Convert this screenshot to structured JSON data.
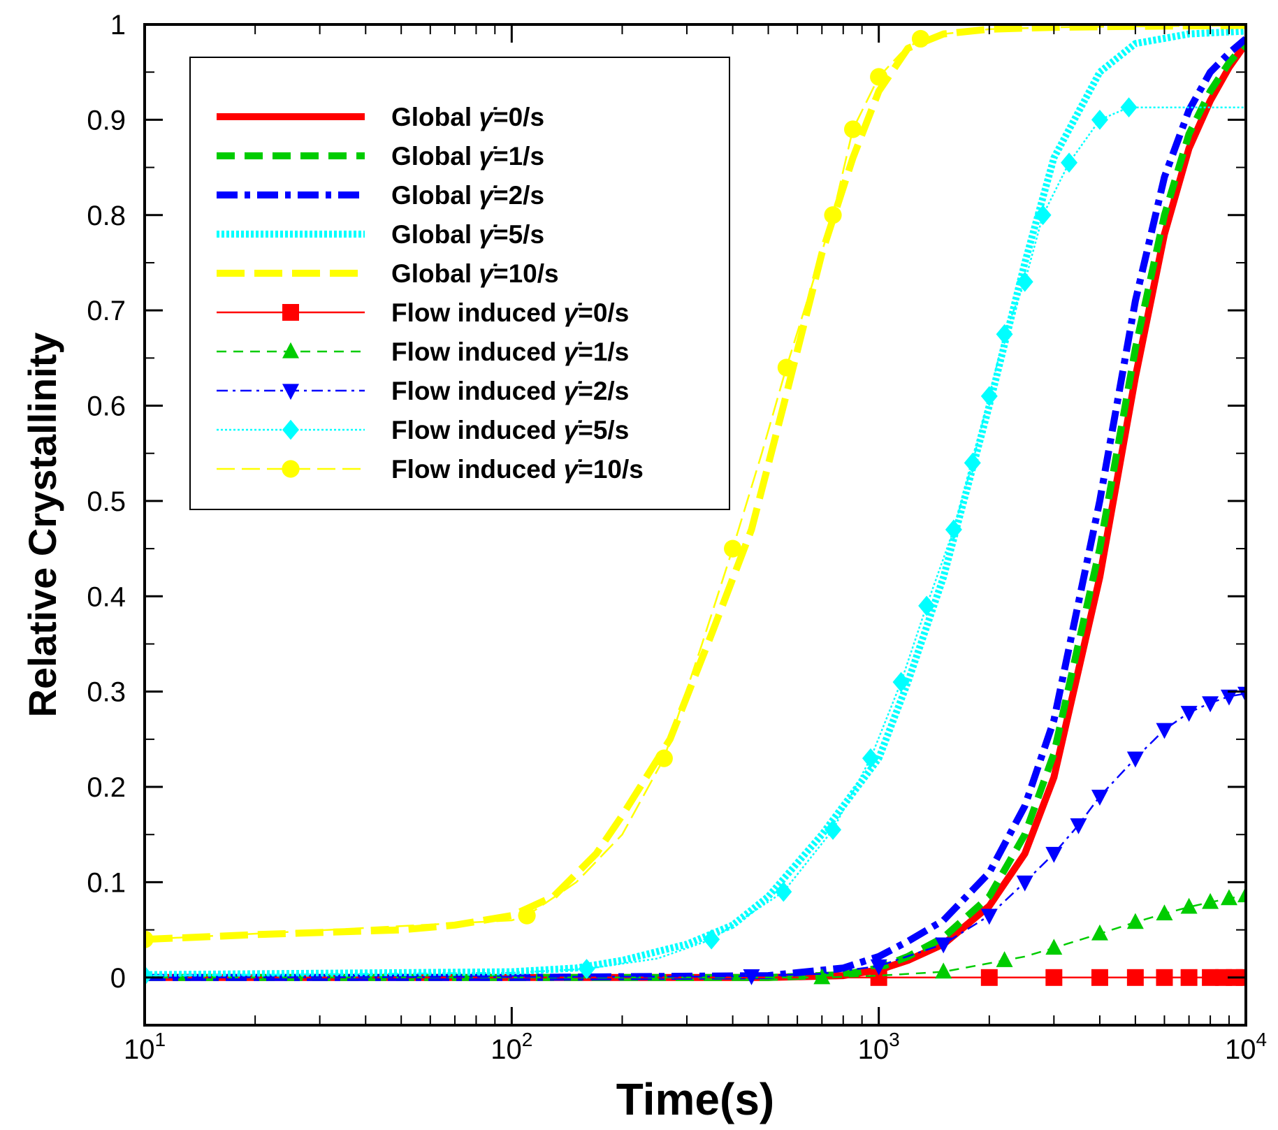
{
  "chart_data": {
    "type": "line",
    "xscale": "log",
    "xlabel": "Time(s)",
    "ylabel": "Relative Crystallinity",
    "xlim": [
      10,
      10000
    ],
    "ylim": [
      -0.05,
      1
    ],
    "x_ticks": [
      {
        "base": "10",
        "exp": "1",
        "value": 10
      },
      {
        "base": "10",
        "exp": "2",
        "value": 100
      },
      {
        "base": "10",
        "exp": "3",
        "value": 1000
      },
      {
        "base": "10",
        "exp": "4",
        "value": 10000
      }
    ],
    "y_ticks": [
      "0",
      "0.1",
      "0.2",
      "0.3",
      "0.4",
      "0.5",
      "0.6",
      "0.7",
      "0.8",
      "0.9",
      "1"
    ],
    "legend_symbol": "γ̇",
    "series": [
      {
        "name": "Global γ̇=0/s",
        "prefix": "Global",
        "suffix": "=0/s",
        "color": "#ff0000",
        "style": "solid-thick",
        "marker": "none",
        "x": [
          10,
          100,
          500,
          800,
          1000,
          1200,
          1500,
          2000,
          2500,
          3000,
          4000,
          5000,
          6000,
          7000,
          8000,
          9000,
          10000
        ],
        "y": [
          0,
          0,
          0,
          0.002,
          0.008,
          0.018,
          0.035,
          0.075,
          0.13,
          0.21,
          0.42,
          0.63,
          0.78,
          0.87,
          0.92,
          0.955,
          0.98
        ]
      },
      {
        "name": "Global γ̇=1/s",
        "prefix": "Global",
        "suffix": "=1/s",
        "color": "#00cc00",
        "style": "dash-thick",
        "marker": "none",
        "x": [
          10,
          100,
          500,
          800,
          1000,
          1200,
          1500,
          2000,
          2500,
          3000,
          4000,
          5000,
          6000,
          7000,
          8000,
          9000,
          10000
        ],
        "y": [
          0,
          0,
          0,
          0.003,
          0.01,
          0.022,
          0.042,
          0.085,
          0.15,
          0.235,
          0.45,
          0.66,
          0.8,
          0.885,
          0.93,
          0.96,
          0.98
        ]
      },
      {
        "name": "Global γ̇=2/s",
        "prefix": "Global",
        "suffix": "=2/s",
        "color": "#0000ff",
        "style": "dashdot-thick",
        "marker": "none",
        "x": [
          10,
          100,
          500,
          800,
          1000,
          1200,
          1500,
          2000,
          2500,
          3000,
          4000,
          5000,
          6000,
          7000,
          8000,
          9000,
          10000
        ],
        "y": [
          0,
          0,
          0.002,
          0.01,
          0.022,
          0.038,
          0.06,
          0.11,
          0.18,
          0.27,
          0.5,
          0.71,
          0.84,
          0.91,
          0.95,
          0.97,
          0.985
        ]
      },
      {
        "name": "Global γ̇=5/s",
        "prefix": "Global",
        "suffix": "=5/s",
        "color": "#00ffff",
        "style": "dotted-thick",
        "marker": "none",
        "x": [
          10,
          100,
          150,
          200,
          300,
          400,
          500,
          700,
          1000,
          1200,
          1500,
          2000,
          2500,
          3000,
          4000,
          5000,
          7000,
          10000
        ],
        "y": [
          0.003,
          0.006,
          0.01,
          0.018,
          0.035,
          0.055,
          0.085,
          0.15,
          0.23,
          0.31,
          0.42,
          0.6,
          0.75,
          0.86,
          0.95,
          0.98,
          0.99,
          0.993
        ]
      },
      {
        "name": "Global γ̇=10/s",
        "prefix": "Global",
        "suffix": "=10/s",
        "color": "#ffff00",
        "style": "longdash-thick",
        "marker": "none",
        "x": [
          10,
          20,
          50,
          70,
          100,
          130,
          170,
          200,
          270,
          350,
          450,
          550,
          700,
          850,
          1000,
          1200,
          1500,
          2000,
          3000,
          5000,
          10000
        ],
        "y": [
          0.04,
          0.045,
          0.05,
          0.055,
          0.065,
          0.085,
          0.13,
          0.17,
          0.25,
          0.36,
          0.47,
          0.6,
          0.76,
          0.86,
          0.93,
          0.975,
          0.99,
          0.995,
          0.997,
          0.998,
          0.999
        ]
      },
      {
        "name": "Flow induced γ̇=0/s",
        "prefix": "Flow induced",
        "suffix": "=0/s",
        "color": "#ff0000",
        "style": "solid-thin",
        "marker": "square",
        "x": [
          10,
          1000,
          2000,
          3000,
          4000,
          5000,
          6000,
          7000,
          8000,
          9000,
          10000
        ],
        "y": [
          0,
          0,
          0,
          0,
          0,
          0,
          0,
          0,
          0,
          0,
          0
        ],
        "marker_x": [
          1000,
          2000,
          3000,
          4000,
          5000,
          6000,
          7000,
          8000,
          8700,
          9300,
          9900
        ]
      },
      {
        "name": "Flow induced γ̇=1/s",
        "prefix": "Flow induced",
        "suffix": "=1/s",
        "color": "#00cc00",
        "style": "dash-thin",
        "marker": "triangle-up",
        "x": [
          10,
          500,
          700,
          1000,
          1500,
          2000,
          2500,
          3000,
          4000,
          5000,
          6000,
          7000,
          8000,
          9000,
          10000
        ],
        "y": [
          0,
          0,
          0,
          0.002,
          0.006,
          0.015,
          0.022,
          0.031,
          0.046,
          0.058,
          0.067,
          0.074,
          0.079,
          0.083,
          0.086
        ],
        "marker_x": [
          700,
          1500,
          2200,
          3000,
          4000,
          5000,
          6000,
          7000,
          8000,
          9000,
          10000
        ]
      },
      {
        "name": "Flow induced γ̇=2/s",
        "prefix": "Flow induced",
        "suffix": "=2/s",
        "color": "#0000ff",
        "style": "dashdot-thin",
        "marker": "triangle-down",
        "x": [
          10,
          400,
          700,
          1000,
          1500,
          2000,
          2500,
          3000,
          3500,
          4000,
          5000,
          6000,
          7000,
          8000,
          9000,
          10000
        ],
        "y": [
          0,
          0.001,
          0.004,
          0.012,
          0.035,
          0.065,
          0.1,
          0.13,
          0.16,
          0.19,
          0.23,
          0.26,
          0.278,
          0.288,
          0.295,
          0.298
        ],
        "marker_x": [
          450,
          1000,
          1500,
          2000,
          2500,
          3000,
          3500,
          4000,
          5000,
          6000,
          7000,
          8000,
          9000,
          10000
        ]
      },
      {
        "name": "Flow induced γ̇=5/s",
        "prefix": "Flow induced",
        "suffix": "=5/s",
        "color": "#00ffff",
        "style": "dotted-thin",
        "marker": "diamond",
        "x": [
          10,
          100,
          160,
          250,
          350,
          550,
          750,
          950,
          1150,
          1350,
          1600,
          1800,
          2000,
          2200,
          2500,
          2800,
          3300,
          4000,
          4800,
          5000,
          10000
        ],
        "y": [
          0.002,
          0.005,
          0.009,
          0.02,
          0.04,
          0.09,
          0.155,
          0.23,
          0.31,
          0.39,
          0.47,
          0.54,
          0.61,
          0.675,
          0.73,
          0.8,
          0.855,
          0.9,
          0.913,
          0.913,
          0.913
        ],
        "marker_x": [
          10,
          160,
          350,
          550,
          750,
          950,
          1150,
          1350,
          1600,
          1800,
          2000,
          2200,
          2500,
          2800,
          3300,
          4000,
          4800
        ]
      },
      {
        "name": "Flow induced γ̇=10/s",
        "prefix": "Flow induced",
        "suffix": "=10/s",
        "color": "#ffff00",
        "style": "longdash-thin",
        "marker": "circle",
        "x": [
          10,
          100,
          110,
          150,
          200,
          260,
          330,
          400,
          480,
          560,
          650,
          750,
          850,
          1000,
          1150,
          1300,
          1500,
          2000,
          3000,
          5000,
          10000
        ],
        "y": [
          0.04,
          0.06,
          0.065,
          0.1,
          0.15,
          0.23,
          0.35,
          0.45,
          0.55,
          0.64,
          0.72,
          0.8,
          0.89,
          0.945,
          0.97,
          0.985,
          0.99,
          0.995,
          0.997,
          0.998,
          0.999
        ],
        "marker_x": [
          10,
          110,
          260,
          400,
          560,
          750,
          850,
          1000,
          1300
        ]
      }
    ]
  }
}
